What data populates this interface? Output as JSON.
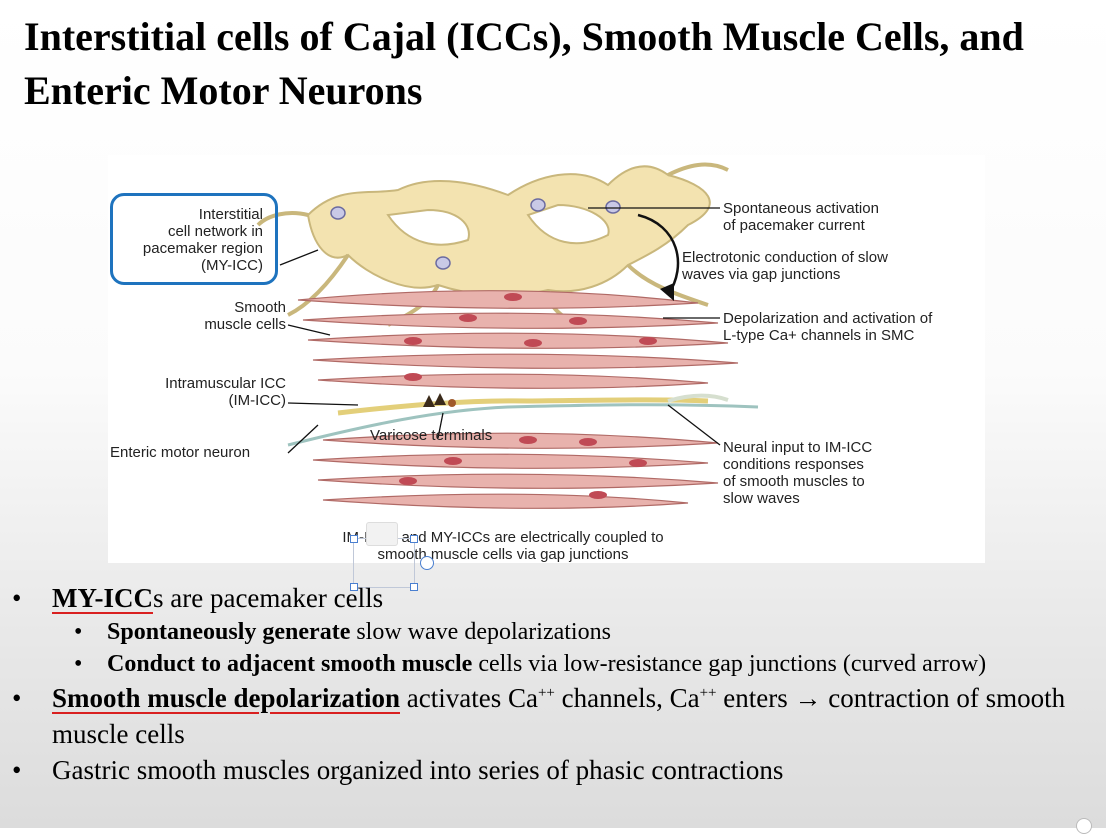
{
  "slide": {
    "title": "Interstitial cells of Cajal (ICCs), Smooth Muscle Cells, and Enteric Motor Neurons"
  },
  "figure": {
    "labels": {
      "myicc": "Interstitial\ncell network in\npacemaker region\n(MY-ICC)",
      "smooth": "Smooth\nmuscle cells",
      "imicc": "Intramuscular ICC\n(IM-ICC)",
      "enteric": "Enteric motor neuron",
      "varicose": "Varicose terminals",
      "spontaneous": "Spontaneous activation\nof pacemaker current",
      "electrotonic": "Electrotonic conduction of slow\nwaves via gap junctions",
      "depolarization": "Depolarization and activation of\nL-type Ca+ channels in SMC",
      "neural": "Neural input to IM-ICC\nconditions responses\nof smooth muscles to\nslow waves",
      "caption": "IM-ICCs and MY-ICCs are electrically coupled to\nsmooth muscle cells via gap junctions"
    },
    "colors": {
      "icc": "#f3e3b0",
      "icc_stroke": "#c9b77c",
      "muscle": "#e8b2ad",
      "muscle_stroke": "#b06a66",
      "nucleus": "#c04a55",
      "highlight_box": "#1e73be"
    }
  },
  "bullets": [
    {
      "level": 1,
      "bold_underlined": "MY-ICC",
      "text": "s are pacemaker cells",
      "sub": [
        {
          "bold": "Spontaneously generate",
          "text": " slow wave depolarizations"
        },
        {
          "bold": "Conduct to adjacent smooth muscle",
          "text": " cells via low-resistance gap junctions (curved arrow)"
        }
      ]
    },
    {
      "level": 1,
      "bold_underlined": "Smooth muscle depolarization",
      "text_a": " activates Ca",
      "sup_a": "++",
      "text_b": " channels, Ca",
      "sup_b": "++",
      "text_c": " enters ",
      "arrow": "→",
      "text_d": " contraction of smooth muscle cells"
    },
    {
      "level": 1,
      "text": "Gastric smooth muscles organized into series of phasic contractions"
    }
  ],
  "icons": {
    "bullet": "•",
    "comment": "comment-icon",
    "rotate": "rotate-handle-icon"
  }
}
